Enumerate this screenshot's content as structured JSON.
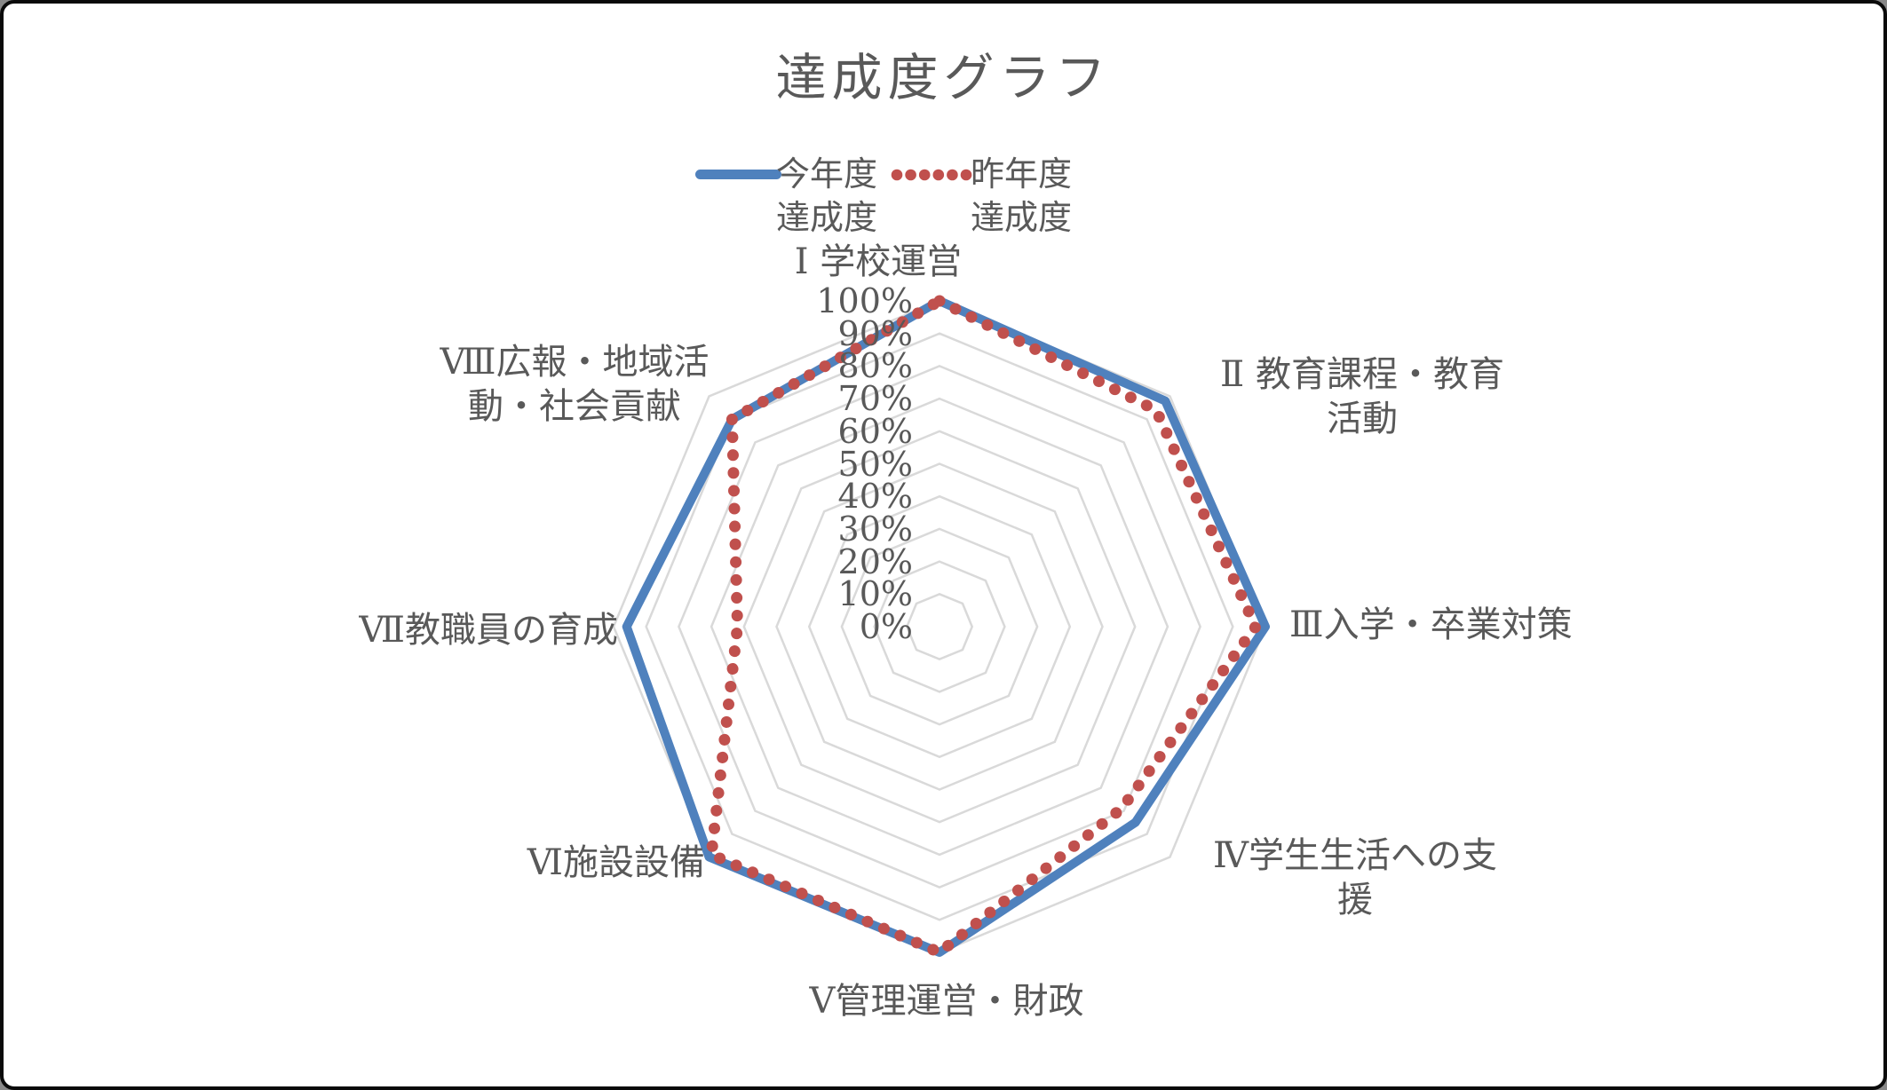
{
  "title": "達成度グラフ",
  "colors": {
    "current_series": "#4F81BD",
    "previous_series": "#C0504D",
    "grid": "#D9D9D9",
    "text": "#595959",
    "frame_border": "#0a0a0a",
    "background": "#ffffff"
  },
  "legend": {
    "items": [
      {
        "lines": [
          "今年度",
          "達成度"
        ],
        "marker": "solid-line"
      },
      {
        "lines": [
          "昨年度",
          "達成度"
        ],
        "marker": "dotted-line"
      }
    ]
  },
  "chart_data": {
    "type": "radar",
    "title": "達成度グラフ",
    "categories": [
      "Ⅰ学校運営",
      "Ⅱ教育課程・教育活動",
      "Ⅲ入学・卒業対策",
      "Ⅳ学生生活への支援",
      "Ⅴ管理運営・財政",
      "Ⅵ施設設備",
      "Ⅶ教職員の育成",
      "Ⅷ広報・地域活動・社会貢献"
    ],
    "category_display": [
      {
        "lines": [
          "Ⅰ 学校運営"
        ]
      },
      {
        "lines": [
          "Ⅱ 教育課程・教育",
          "活動"
        ]
      },
      {
        "lines": [
          "Ⅲ入学・卒業対策"
        ]
      },
      {
        "lines": [
          "Ⅳ学生生活への支",
          "援"
        ]
      },
      {
        "lines": [
          "Ⅴ管理運営・財政"
        ]
      },
      {
        "lines": [
          "Ⅵ施設設備"
        ]
      },
      {
        "lines": [
          "Ⅶ教職員の育成"
        ]
      },
      {
        "lines": [
          "Ⅷ広報・地域活",
          "動・社会貢献"
        ]
      }
    ],
    "series": [
      {
        "name": "今年度達成度",
        "style": "solid",
        "color": "#4F81BD",
        "values": [
          100,
          98,
          100,
          85,
          100,
          100,
          96,
          90
        ]
      },
      {
        "name": "昨年度達成度",
        "style": "dotted",
        "color": "#C0504D",
        "values": [
          100,
          94,
          97,
          79,
          100,
          99,
          62,
          90
        ]
      }
    ],
    "axis": {
      "min": 0,
      "max": 100,
      "step": 10,
      "tick_labels": [
        "0%",
        "10%",
        "20%",
        "30%",
        "40%",
        "50%",
        "60%",
        "70%",
        "80%",
        "90%",
        "100%"
      ]
    },
    "grid": true,
    "legend_position": "top"
  }
}
